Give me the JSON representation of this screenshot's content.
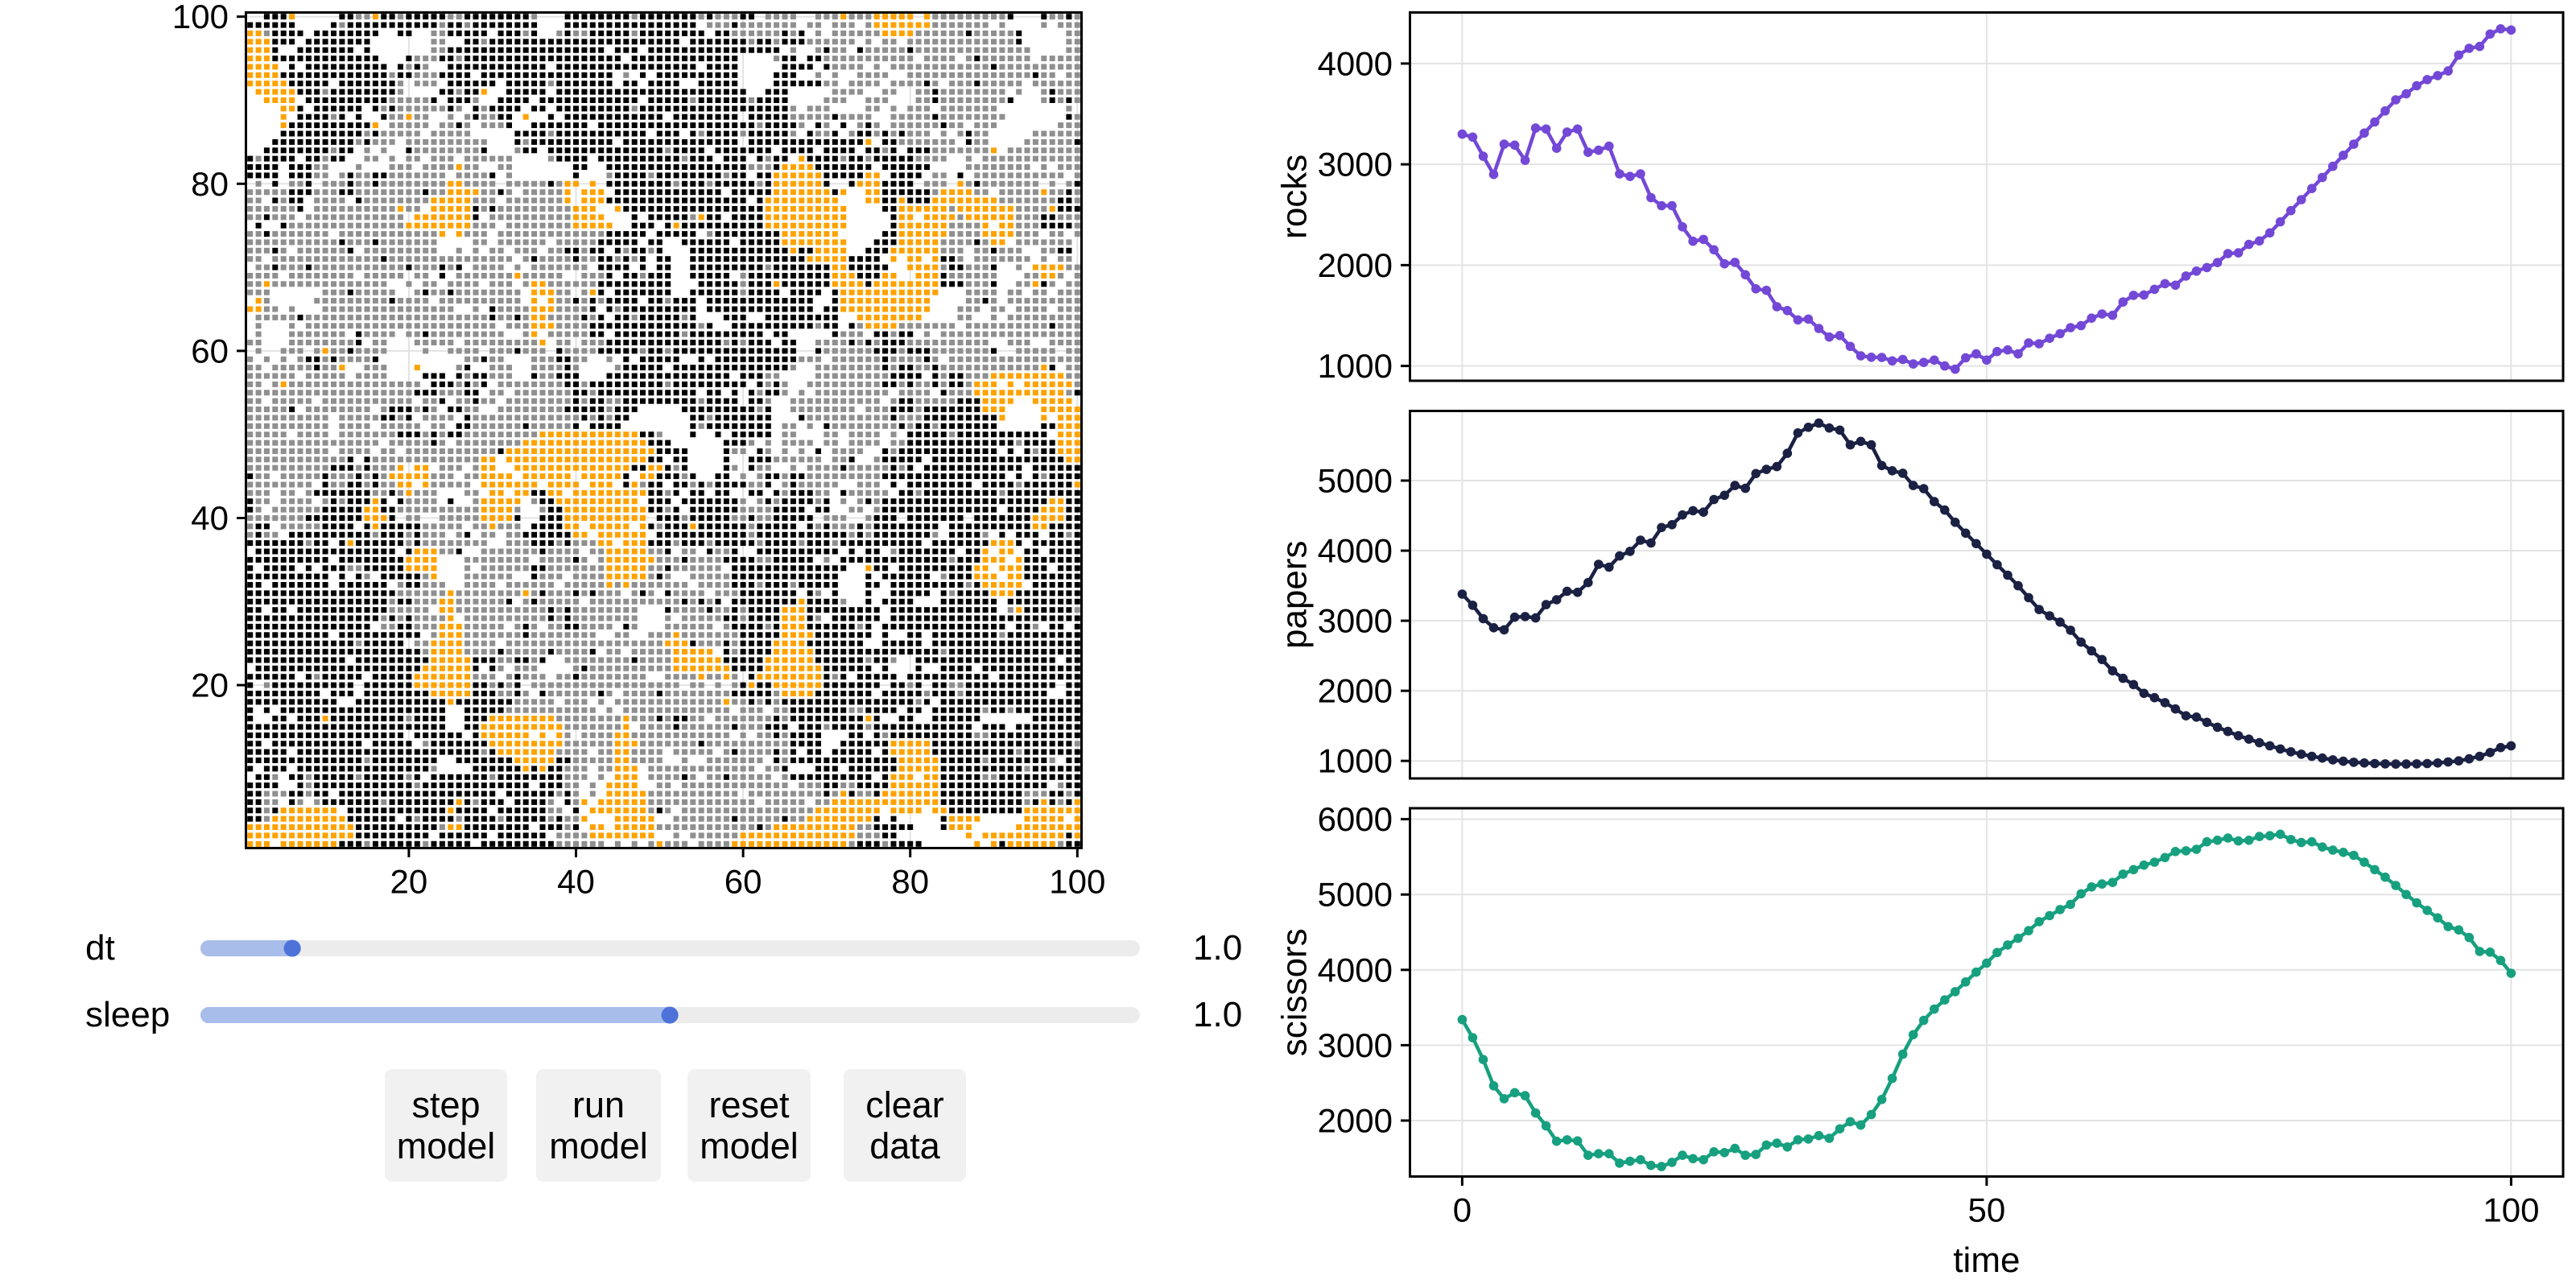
{
  "figure": {
    "background": "#ffffff"
  },
  "grid_plot": {
    "x_tick_values": [
      20,
      40,
      60,
      80,
      100
    ],
    "x_tick_labels": [
      "20",
      "40",
      "60",
      "80",
      "100"
    ],
    "y_tick_values": [
      20,
      40,
      60,
      80,
      100
    ],
    "y_tick_labels": [
      "20",
      "40",
      "60",
      "80",
      "100"
    ],
    "cell_colors": {
      "k": "#000000",
      "g": "#8f8f8f",
      "o": "#fea200"
    },
    "rows_top_to_bottom": [
      "..kkko.....kkggokkgkkkkkggkkkkkkkkg...kkkkkkkkgkkkkkkkgkgggkk.gggg..gggogggooooo.ogggggggggk...kggkg",
      "kkkkkk....kgkkkkkkkkkkkgkkgkkkkkkkk...kkkkkkkkkkkkkkkk.gggkggggggg.gg.ggg.goooooooggggggg.g....g.ggg",
      "oogkkkk.kkkkkkkk..kk..ggkkkkk.kkkgk..gkggkkkkkgkkkkkkkk.kkggggggkgk.g.ggggggooooggggggkgggggk.....gg",
      "oookkk.kkkkkkkk.......gg..kkgkkkkkkkkkkkkkkkkkkkkkkk.kkkkkkkgkkgkkkgggggg.g.gg.gggggggggggggk.....gg",
      "oook..kkkkkkk.k.......ggkkkkkkkkkkkkkkkkkkk.kkk.kkkkkkkkkkkkkkkk.g..gkgg.kgggggkgggggggggggggg....gg",
      "oookkkkkkkkkkkkk...kgggkkgkkkkkkkkkkkkkkkkkkk.kkkkkkkkkkkkk....gkk.kkggggggggggg.gggg.gkgggggg.ggggg",
      "oooo.k.kkkkkkkkkk.kgkg..kkkkkkkkkkkk.kkkkkkkkkkkkkkkkk.kkkk.....kkkk.kgggg.g.ggggggggggggkgggggggggg",
      "ooookkkkkkkkkkkkkgkkgggkkkk.kkkkkkkkkkkkkkkk.g.k.kkkkkkkkkk....kkk..g.g..gggg..gggggggggggggggkgg.gg",
      "oooookkkkk.kkkkkkkg.ggg.kkkkkk.kkkkkgkkkkkkk.kk.kkkk..kkkkk....kkkkkkgg.gggg.ggggkg.gggkggggg.gggggg",
      ".oooookkkgkkkkkkkkg....kkgkko..kkkkk.kkkkkkkkkkkkkkkkkkkkkkk..kkk.....gggg..gg..ggkgggggggg.g..gkggg",
      "..oooo.kkkkkkkkkkgggggk.kkkg..kkkk.kkkkkkkkkkkk.kkkkkgkkkkkkgkkkk....ggg..ggg...ggkggggggggk...gkgkg",
      "....ook.kkkkkk.kgkggggggkg.kgkkkk.kk.kkkkkkkkkgkkkkkkkkkkkkkkkkkkg.ggg....gg.g.ggg.ggggggg........g.",
      "....o.kkkkgk.k..kggogg..g.gkggkk.o..k.kkkkkkkkkkkk.kkkkkkkk.kkkkkgggggkgggg..gggggkgggggggg.......kg",
      "....okkkkkkkkkko.ggggg.ggkg.gggk..kkkkkkk.kkkkkkkkkkkkkkkkkkkgkkkkg.kg.k.gkg.ggggggkgg.ggg.......ggg",
      "....kkkkkkkkkkgkggggg.ggggg.....kkkkgkkkkkkkkkkk.kkk.kgkkkkgkkkkkg.kggk.gkkgkgkggg.g.gkgg.....gggggg",
      "...kkkkkkkkkkgkggg.gggggggggg...kgkkkkkkkkkk.kkkkkkkkkkkkkk.kkkkkkkkkkkkkko.kkggggggg.kgg....ggggggk",
      "..kkkkkkkkgkk.g.g..kggggggggk...gkk.kkkkkkkkkkkkkkgkkkk.kkkkkkk.kkkk.kkkk.kkgk.kkkgggggggo.ggggggggg",
      "kgkkkk.kkgkk..gg.g.gg.ggg.gggggg....gkkkk.kkkkkkkkkkgkkk.kkk.kgkk.okkkkgkkgkkkkkgggg..g.gggggggggggg",
      "kkkk.kkkgg...g...ggg.ggggogg..gg.......kk..kkkkkkkkkkkkkkkkkgggkooookkkkkkk.kkkkkk....gggggggg.g.ggg",
      "kkkk.kkkgg.gkggkkggggggg.ggggk.g.......k...gkkkkgkkkkkkkkgkk.kkooooookkkkkoo.kkkk.gg.k.ggggggggggg.g",
      ".g.k.ggk.gggkggkggggggggoogggg.gggggkgoo.o.kkkkkkkkgkkkgkkkkkgkooooook..koookkkk.ggg.ogkggggggg.g.gk",
      "gggggkkkgggkkggggggggkggooooggkg.gggggo.ooo.kkkkkkkkkkkkk.kkkkkoooooooko..ookkkkkkgoooogg.gggggoggkg",
      "gg.kgkk.gggg.kggggggggoooooggg.gggggggo.oookkkkkkkkkkkkkkkkk.kooooooooo...ookkokkkoooooooogggggggkkg",
      "ggggggk.ggggggggggogg.oooookgkgggggggggooo..okkkkkkkkkkkkkkkkkoooooooooo....kkoooooogoooooooggggokkk",
      "ggkggg.gggggggggggg.oooooook.ggggggggggoooo...k.kkkkkgokk.kkkkoooooooooo.....koo.oooogoooooogggkkggg",
      ".k..kggggggggggggggooooooooggg.ggggggggooooo..kkk.kokkkkkkkkkkoooooooooo.....kooooooggggo.oogggkkkkg",
      "ggkggggggg.ggggggggggggo.oggg.gggggggggggggkkkkk.kkkkk.gkkkkkkkkooooooo.....kkooooooggggooooggg.gg.g",
      "gggggggggggkgggkggggggg....gg.gggggg.gggggkkkkk.kk..kkkkkk.kkkkkoooooooo...kkkoooooggggkgoo.ggggggg.",
      "gggkg.ggggggk.ggggggggg..g.g.gg.ggg.ggkkgkk.kgkkgk...kkkkkkkkkkkkokkoooo..kkkooooooggg.ggkggg..ggkk.",
      "gg.gggggggggggggkggggggggggggggg.gkggggkggkkgkgk.kk..kkkkkkkkkkkkkkoooookkkk.o.oo.okkg.ggggggg.g.gg.",
      ".ggkgggkgggggggggggkgggkgk.gggg.g.ggggggg.kkkk.k.kk..kkkkkkkkkgkkkkkkkookkkkk..oooogkkgggk..g.oooogg",
      "gggg.gggggggg.ggggg.gg.k.gggggggoggggg..gggk.kkgkkk..kkkkk.gkkkkkkkkkkoookkkoo..oookgggggg...ggoog.g",
      "ggogggggggggggggg..g.gg.gggg.ggg.googgggggkkkkkkkkk...kkkkkgkkkokkkkkkooookooooooookkkgggk..ggokg.gg",
      "ggg......gggkggggg..gkggkgggggggg.ooogg.gok.kkkkkkk..kkkkkkgkkkk.kkkk.koooooooooooo...gggg.gg.gg.ggg",
      ".og.....gggggggggkgggg.gggggggggg.o.oggkgkgkkkk.kkgkkk.kkkkkkkkkkkkk..kooooooooooo....ggkg.ggggggggg",
      "oogg.g...gggggggggggggggg..g.kggggoooggggk.kgkkkkkkkkk.kkkkkkkkkkkkk.kkooooooooooo...ggg.gg.gggg.ggg",
      ".gggggkggggggggggggggggggggggkggkgooggggkgk.kkgkkkkkgk...kkk..kkkkkkkkk..oooooooo....gg..g.ggggggggg",
      ".g...g.ggggggggggggggggggggggg.gggoooggggkkkkkkkkkkkkkgk..kkkkkkkkkkgkk.kgooooggggggg.ggggggggggkggg",
      ".g...ggggggg.kgggg.ggkggggggggg..go.gggggkk.kkkkkkkkgkkkkkkkkk.kk.....kggg.kkgkk.g.ggggggggggggggggg",
      "gg...ggggggggk.gg...ggggg.gggggggggo.gg.gggkkkkkkkkkkkkkkgkgkkk.kk..ggggkgkgkkkgggggggggg..ggg..gggg",
      ".g..ggg.goggkgggg....g..gggg.gggkggg.kggggkkkkkgkkgkkkkkkkkkkkkkkk..kggggggkkkgkkkgggggggk..ggggg.gg",
      "g.g.g.gkkgkggggk..........ggkgg...gggkkgg..g.k.kkkkk..k.kkkkkkkkkkggg.ggggggkggggkg.gggggggggggggggg",
      "gg.gggggkggo..ggg...o....gk..ggg..ggggkg....gkkkkk.kkkkkkkkkkkkkkg..ggggggggkgkkggkggggggggggggok.gg",
      "gggggg.ggggg.gggg....kkk.kgkkggg..kggkkk...kkkkkkkkkkkkkkk.kkkgg....gggggggggkkkk.kgkkgggooooooooogg",
      "gg.gogggggggggggggggg.kkkgkgk.ggggggggkkgkkkkkkkkkgkkkkkkkkk.kgkg..gggggggggkkgkggkgkkgooo.o.oooooog",
      "ggggggggggggggggggggkkkgggkk.gg.gggggggkkgkkkkkkkkkkkk.kk.k.kgkkg.g.ggggggggg.gggg.kgggooooooooooogk",
      "gg.ggggg.ggggggggggg.ggk.ggkgg.ggggggggkgkkggkkkkkkkkkgkkkk.kkg..ggggggggggg.gkkgggggkkkoooo..ooooo.",
      "gggggk.gggggggg.gkkkgkg.kkgg..ggggggggkkkkkgkkk.....kkkkkkkkkgk..gggggggg.gggkkkgkkkkkkkooo....ooooo",
      "gggggggggg.gggggkkgk.gggg.kgggggggggggggkgkgkk.......kkgkkkkkkk...kggggggggggkgggkkkkkkkkko....o.ooo",
      "gggggggggg.gggg.ggggg.gg.kkggggggkgggggk.kkkk........kgkkkkkkkk.gg.g.kggggggggkgkkgkkkkkkk.....kkooo",
      "ggggg.gggg.gggggggkkkgkgkkgggggggggooooooooooookkg...k..k.kkkkk.gg...gg.gggg.g.kkkkkgkkkkkkkkkkk.ooo",
      "gggggggggggggggg.gggggkg.ggggggggoooooooooooooookkk......kkkg.g.gggg.gg.gggg.ggkkkkkkkkkkkkkgkkkkooo",
      "gggggggggg.gggg.gg.gggggggggggkooooooooooooooooookkkk....kgg.kg.g.g.k.gggg..kgkkkkkkkkkkkk.k.kgkkooo",
      "ggggggggggggk.kgggggggggggggoo.oooooooooooooooookk.kk....k..kkkgggggg.ggk..gkkkkk.kkkkkkkkkkkkkkkkoo",
      "ggggggggggkkkgkgggo.oo.ggg.goo..ooooooooooooookkookgk....kg.kgg..g.ggggkgggggkgk.kkkkkkkkkkkk.kkkkkk",
      "kgg.gggggkgggkgkgoooooggg.ggoooo.oooooo.oooook.ookkkgk..kk.g.gkkgkkgggggggggkkkkkkkkkkkkkkk.k.kgkkkk",
      "gggggggg.kggkkgkggoo.oggggg.ooooooo.oooo.ooo.kogkk.kkgkgkkkkggk.gkggggg..ggg.k.kkkkkkkk.kkkkgkkkkkko",
      "ggg.gg.gkkkkkkkggkgoggg...gg.oo.ookkoo.oooooooookkgk.kk.kk..kk.kgkkkgg.kggggg.kkgkkkkkkkkkgkkkkkkkkk",
      "kgg.gggg.gkgkkkok.kgggg.k..gooooo.gkkoooooooooo.kkk.kkkkkkkg.gkgkkkkgk.g.gkgkkkkkkkkkkkkkkkkkkkkookk",
      "kg.ggggggkkkkkookkggggggggggoooog..gkkooooooooookkgk.kkkkkkggggkkkk.kk..gg.gkkkkkkkkkkkkkk.kkkkoookk",
      "gggggggkkkkkkkoook.gg..gggggooook..kkkoooooooooo.kkkgkkkkkggkggkkkkk.ggg..gkkk.kkkkkkk.kkkkkkkooookk",
      "gkk.gggggkkkk.kokkkkkggggg.ggoggg.kkkkoo.ooooo.okgkkkokkkkkkgkkkkk.kgkgggkgkkkkkkkk.kkkkkkkkkkookkkk",
      "gkgg.kkkkkkkkkkgkkkgkggg.gk.gg.ggkkkkkkoo.oooooo.kkkkkkkkkkkgkkkkkkkkkkkgkgkkkkkkkg.kkkkg.k.kkk.kkgk",
      "kkkkkkkgkk.kokkkkkkgkgggggggg..gggkkkgkgggoo.oookkkgkkkgkkkkkgkkkkgkkkgkkkkkkkkkk.kkkkkkkoook.kkkkkk",
      ".kkkkkkkkkkkkkkkkk.koooggk..gggggggkgggg.ggoooooggk.gg.kggk..kkkkkkkkkk.k.kk.gkkkkkkk.kko.oo.kk.kkkk",
      "kkkkkkkkkk.kkkkkkkkoooo...gggggggg.ggggkg.goooooogggkggggkkkkggkkkkk.g.kkkkkkkkkkkkkgkkkooo.okkkkkkk",
      "k.kkkk.k.kkkggkkkkkoooo...g.ggggggkkgggggggoooooggkgggggg.kkkkkkkkkkkkkk..okk.kkkkkkkkkoo.oookkk.kkk",
      "kkkkkkkkkk.k.kg.kkkkkgo...gggggg..kggg.ggggooooogkg..gggggkkkkkkkkkkkkk...k.kkkkkk.gkkkooo.ookkkkkkk",
      "kk.kkkkkkk.kkkkkk.gkkggg..gggg.gggggg.gggggogoggggggg.ggggkkkgkkkgkkkkk...kk.kkkkkkkkkgkooooo.kkkkkk",
      "kkkkkkkkkkkkkkkkkkggggggoggggggggogkgggkgkggg.gkg.kgggg.gggkkkkkkk.kg.k...k..kkkkk.kgkkkkoookkkkkkkk",
      "kkkkkkkkkkkkkkkkkgkkgggooggggggk.gkggggg.gggggggggggkgkgk.kkkkkkkkokkkkg..k.kkkk...kkkkkkk.kkkkkkkkk",
      "kk.kk.kkkkkkkkkkkggggg.oogggggggggggkgkgggggggg...kggggkggkgkkkkoookkkkkkkkk.kkkkkkkkkkkkk.gokkkkkkg",
      "kkkkkkkkkkkkkkkkgkgkggggo.ggggggggggkgkgggggggg...g.gggggkkgkkkkoookg.kkkkkk.kkkkkkkkkkkkkkkkkkkkkkk",
      "kkkkkkkkkkkkkkk.ggkkgggoooggggg.gkg.ggkkgggg.kg...gggggg.gkkkkgkoookkkkkkgk.kkkkkkkkkkkkkkk.kkg.kk.k",
      "kkkkkkkkkk.kkkkkkkkkk.gooogggggggkgggggggg..gg..gggogggggggkkkkkooookkkkkkk.k..kk.kkkkkkkkgkkkkkkkkk",
      "kkkkkkkkkkkkkgkkkkk.ggoooogggg.gggggggggggggggggggoookgggkgkkkkooookkkkkkk..kkkkk.kkkkkkkkkkkkkkkkkk",
      "kkkkkkkkkkkkkkkkkkkkkgooooggggkgggggkggggk.gg.gggggooooo.kgkkkkoooookkkkkkkkkkkkkkkgkkkkkkkkkkkkkkkk",
      "kkkkkkkkkkkk.kkkkkkkkkoooookkkggkkgk..ggggggggkggggooooookkkkkooooookkkkkkgkkg..kkkkkkkkkkkkkkkkk.kk",
      ".kkkkkkkkkkkkkkkkkkkkooooook.kg.ggg....gkggggggggggoooooookkkkoooooookkkkkk.k...k..kkkk.kkkkkkkkkkkk",
      "kkkkkk.kgkkkkk.kkkkkoooooooggg.gkggg.ggkgggggggg..ggggoggog.kooooooookgk.kkkkk.kkkkkkkkkk.kkkkkkkkkk",
      "k.gkkkkkkkkkk.kkkkkkoooooookkgkgk.gggggggggggggggggg.gg.g.gkokkooooookkkkkkk.kkgk.kkggkkkkkkkkkkk.kk",
      "kkkkkkkkk.kkk.kkkkkkkkoooookkkggkg.kggggggkg.ggggkggggggggkkkkkgooookkkkkkk.kkkkkgkkkgkkkkkkkkkk..kk",
      "kkkkkkkkkkk..kkkkkkkkkkkokkkkkkkggggg.ggg.g.gggggggggggggoggkgkgkkkkkkkkkkkkkkkkgk.kkkkkkkkkkkkkkkkk",
      "k.k.kkkkkkkkkkkkkkkkkkkk..kkkkkggggggggggg.g.ggggggggggggg.ggg.ggkkkkkkkggkkkk.kk.kkkkkkgkkgkkkkkkkk",
      "k..kk.kkkokkkkkkkkkgkkkk..kkkooooooooggggggggogggkgkkgg.gggggggkgkkkkkkkkkok..kk..kkkkkk......kkkkkk",
      "kkkkkkkkkkkkkkkkkkkkkkkk..kkoooooooooogggggggo.ggggkggggggkgggkkk.kkkgkkkkgkkkkkkkkkkkk.kkk.kkkkkkkk",
      "kkkkkkkkkkkkkkkkkkk.kkkkkk.koooooo.o.og.ggggoogggggggggggg.g.ggkgkkkk...kk.kgkkkkkkkkkkggkkkkkkkkkkk",
      "kk.kkkkkkkkkkk.kkkkk.gkkkkkkkoooooooooggggggooogggggggkggggggggggkkkk..kkkkkkoooookkkkkkkkkkkkkkkkkg",
      "kkkkk.kkkkkkkkkkkkkkkkkkkkkkgkooooooogggg.ggoogggg.ggggg.gkggggkgk.kk.kkkkk.koooookkkkkkkkkkgkkkkkkk",
      "kkkkkkkkkkkkkkgkkkkkkkk..kkkkkkkoooookkgggggoogggg..g..ggggggg.kgkkkkkkkkkkkkkoooookkkkkgkkkkkkkg.kk",
      "k.kkk.kkkkkkkkkkkkkkkkg....kkkkkkokokkggg.ggooo.ggggggggggggg.ggk...kkk.kkkkkkoooookkkkkkkkkkgkkkkkk",
      ".kkg.kkgkkkkkgkkkkkgk.kkkkkkkgkkkkkkkkggg.g.ooo.ggggkg.ggkggggg.gkkkkkkkkkk.kooo.ookkkkkggkkkkkkkkkk",
      "kkkk..kgkkkkkkkkkkkkgkkkkkkkkkkkkk.kkkgg.g.oooo..gg.ggggggggggggg.gggkkggkkkkooooookkkkkkkkkkkkk.gkk",
      "kkgggkkgkk.kkkkkkkkkkkkkkkkkkk.kkkkkkgkg.g.oooooggggggggggg.gggggggggkgokggkoooooookkkkkkkkkkgggkkgk",
      "kkgg.kg.gkkkkkkkgkkkkkkkkokgkkk.kkkkg.kgo.ooooooggggggggggggg.ggggg.ggoooooooooooookkkkkkkkkkgkokgko",
      "kkgkooooooo.kkkkkkkkkkkkokkkk.kkkkkkgg.k.ooooooogkg.ggggggggggggggggoooooooo.oooo.ookkkkkkkkkooooooo",
      "kkgoooooooookkkkkk.kgkkkkgkkkkgkkkkkgkggo...ooooo..gggggggkgggggkggooooooook.k.....koooo.....ooooo.o",
      "oooooooooooookkkkkkkkkkgookkkkkkkk.kkkgk.oo.oooooggggggggggggkgooooooooooggkkkkk...kooo.....oooooooo",
      "oooooooooooookkkkkkkkk.kkkkkk.kkkkkk.ggggoooooooo..g.ggggggoooooooooooooogggkk........o.ooooooooooko",
      "ooo.oooooookkkgkkkkkkgkkkkk.kkkkkkkkkgggggg.g.g.goggg.ggggoooooooooooooogkkkgkkkk......o.okoooooogkk"
    ]
  },
  "controls": {
    "sliders": [
      {
        "name": "dt",
        "label": "dt",
        "value_label": "1.0",
        "fraction": 0.091
      },
      {
        "name": "sleep",
        "label": "sleep",
        "value_label": "1.0",
        "fraction": 0.5
      }
    ],
    "buttons": [
      {
        "name": "step-model",
        "lines": [
          "step",
          "model"
        ]
      },
      {
        "name": "run-model",
        "lines": [
          "run",
          "model"
        ]
      },
      {
        "name": "reset-model",
        "lines": [
          "reset",
          "model"
        ]
      },
      {
        "name": "clear-data",
        "lines": [
          "clear",
          "data"
        ]
      }
    ],
    "colors": {
      "track": "#ececec",
      "fill": "#a8bde9",
      "handle": "#4d73d9",
      "button_bg": "#f1f1f1",
      "text": "#000000"
    }
  },
  "chart_data": [
    {
      "type": "line",
      "name": "rocks",
      "ylabel": "rocks",
      "color": "#7348d6",
      "x_start": 0,
      "x_step": 1,
      "values": [
        3300,
        3270,
        3080,
        2900,
        3200,
        3190,
        3040,
        3360,
        3350,
        3160,
        3320,
        3350,
        3120,
        3140,
        3180,
        2905,
        2880,
        2905,
        2670,
        2590,
        2590,
        2380,
        2237,
        2255,
        2152,
        2013,
        2028,
        1905,
        1765,
        1750,
        1588,
        1549,
        1457,
        1465,
        1372,
        1287,
        1302,
        1194,
        1101,
        1086,
        1085,
        1050,
        1065,
        1020,
        1035,
        1058,
        1000,
        968,
        1081,
        1120,
        1058,
        1143,
        1159,
        1120,
        1228,
        1220,
        1275,
        1320,
        1380,
        1400,
        1474,
        1516,
        1502,
        1635,
        1700,
        1704,
        1760,
        1816,
        1801,
        1892,
        1941,
        1976,
        2025,
        2115,
        2122,
        2206,
        2240,
        2320,
        2430,
        2540,
        2650,
        2760,
        2870,
        2980,
        3090,
        3200,
        3310,
        3420,
        3530,
        3640,
        3700,
        3780,
        3840,
        3880,
        3927,
        4084,
        4151,
        4169,
        4292,
        4344,
        4332
      ],
      "y_ticks": [
        1000,
        2000,
        3000,
        4000
      ],
      "x_ticks": [
        0,
        50,
        100
      ],
      "x_tick_labels": [
        "0",
        "50",
        "100"
      ],
      "show_x_tick_labels": false,
      "xlabel": "",
      "xlim": [
        -5,
        105
      ]
    },
    {
      "type": "line",
      "name": "papers",
      "ylabel": "papers",
      "color": "#1b2143",
      "x_start": 0,
      "x_step": 1,
      "values": [
        3380,
        3220,
        3030,
        2900,
        2870,
        3050,
        3060,
        3040,
        3230,
        3300,
        3420,
        3405,
        3545,
        3805,
        3765,
        3925,
        3990,
        4150,
        4110,
        4330,
        4370,
        4510,
        4570,
        4550,
        4730,
        4790,
        4930,
        4890,
        5100,
        5160,
        5200,
        5390,
        5680,
        5760,
        5820,
        5750,
        5720,
        5510,
        5560,
        5510,
        5215,
        5140,
        5105,
        4930,
        4885,
        4700,
        4580,
        4405,
        4250,
        4100,
        3950,
        3800,
        3650,
        3500,
        3330,
        3160,
        3070,
        2980,
        2865,
        2695,
        2570,
        2446,
        2286,
        2179,
        2089,
        1964,
        1902,
        1831,
        1741,
        1643,
        1625,
        1550,
        1480,
        1420,
        1360,
        1310,
        1260,
        1215,
        1170,
        1130,
        1095,
        1065,
        1040,
        1015,
        995,
        980,
        970,
        962,
        958,
        955,
        955,
        958,
        962,
        970,
        985,
        1000,
        1030,
        1065,
        1120,
        1190,
        1215
      ],
      "y_ticks": [
        1000,
        2000,
        3000,
        4000,
        5000
      ],
      "x_ticks": [
        0,
        50,
        100
      ],
      "x_tick_labels": [
        "0",
        "50",
        "100"
      ],
      "show_x_tick_labels": false,
      "xlabel": "",
      "xlim": [
        -5,
        105
      ]
    },
    {
      "type": "line",
      "name": "scissors",
      "ylabel": "scissors",
      "color": "#17a07f",
      "x_start": 0,
      "x_step": 1,
      "values": [
        3340,
        3100,
        2810,
        2460,
        2290,
        2370,
        2330,
        2100,
        1930,
        1725,
        1745,
        1730,
        1540,
        1560,
        1560,
        1435,
        1460,
        1480,
        1405,
        1390,
        1445,
        1540,
        1495,
        1480,
        1585,
        1575,
        1630,
        1540,
        1550,
        1675,
        1700,
        1650,
        1745,
        1755,
        1800,
        1765,
        1890,
        1985,
        1940,
        2080,
        2280,
        2560,
        2880,
        3140,
        3330,
        3480,
        3600,
        3710,
        3840,
        3970,
        4090,
        4230,
        4330,
        4420,
        4520,
        4640,
        4720,
        4800,
        4870,
        5010,
        5100,
        5140,
        5160,
        5270,
        5330,
        5390,
        5430,
        5490,
        5570,
        5580,
        5600,
        5700,
        5720,
        5750,
        5710,
        5720,
        5770,
        5780,
        5800,
        5730,
        5690,
        5700,
        5630,
        5590,
        5560,
        5520,
        5430,
        5330,
        5230,
        5120,
        5000,
        4890,
        4790,
        4690,
        4575,
        4530,
        4430,
        4245,
        4235,
        4125,
        3955
      ],
      "y_ticks": [
        2000,
        3000,
        4000,
        5000,
        6000
      ],
      "x_ticks": [
        0,
        50,
        100
      ],
      "x_tick_labels": [
        "0",
        "50",
        "100"
      ],
      "show_x_tick_labels": true,
      "xlabel": "time",
      "xlim": [
        -5,
        105
      ]
    }
  ]
}
